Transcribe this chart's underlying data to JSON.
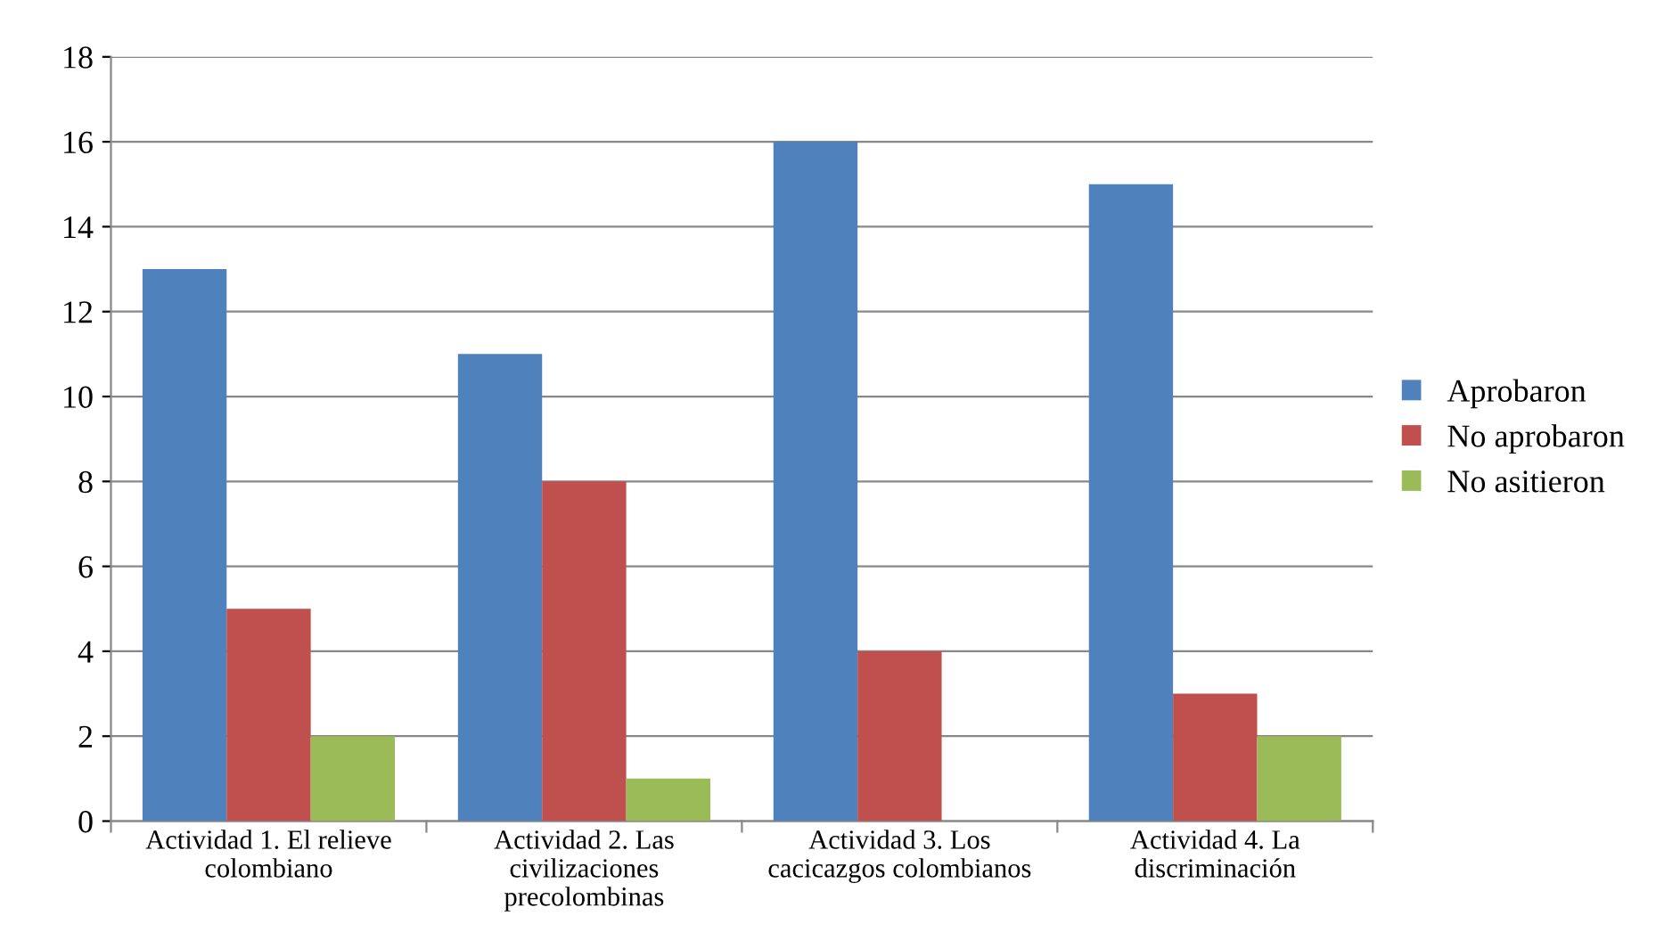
{
  "chart_data": {
    "type": "bar",
    "categories": [
      "Actividad 1. El relieve\ncolombiano",
      "Actividad 2. Las\ncivilizaciones\nprecolombinas",
      "Actividad 3. Los\ncacicazgos colombianos",
      "Actividad 4. La\ndiscriminación"
    ],
    "series": [
      {
        "name": "Aprobaron",
        "color": "#4f81bd",
        "values": [
          13,
          11,
          16,
          15
        ]
      },
      {
        "name": "No aprobaron",
        "color": "#c0504d",
        "values": [
          5,
          8,
          4,
          3
        ]
      },
      {
        "name": "No asitieron",
        "color": "#9bbb59",
        "values": [
          2,
          1,
          0,
          2
        ]
      }
    ],
    "ylim": [
      0,
      18
    ],
    "yticks": [
      0,
      2,
      4,
      6,
      8,
      10,
      12,
      14,
      16,
      18
    ],
    "grid": "y",
    "legend": "right"
  }
}
